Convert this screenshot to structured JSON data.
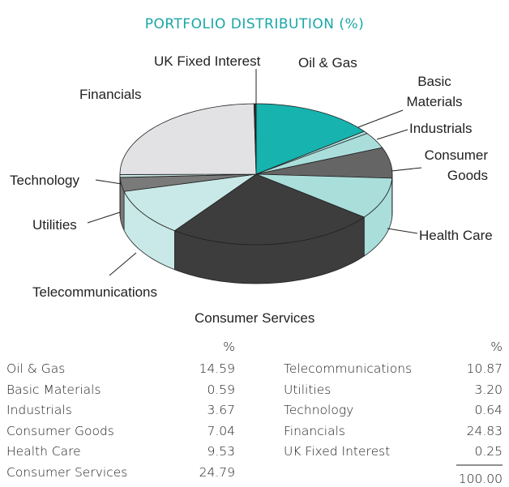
{
  "chart_data": {
    "type": "pie",
    "title": "PORTFOLIO DISTRIBUTION (%)",
    "categories": [
      "Oil & Gas",
      "Basic Materials",
      "Industrials",
      "Consumer Goods",
      "Health Care",
      "Consumer Services",
      "Telecommunications",
      "Utilities",
      "Technology",
      "Financials",
      "UK Fixed Interest"
    ],
    "values": [
      14.59,
      0.59,
      3.67,
      7.04,
      9.53,
      24.79,
      10.87,
      3.2,
      0.64,
      24.83,
      0.25
    ],
    "value_labels": [
      "14.59",
      "0.59",
      "3.67",
      "7.04",
      "9.53",
      "24.79",
      "10.87",
      "3.20",
      "0.64",
      "24.83",
      "0.25"
    ],
    "colors": [
      "#17b3ae",
      "#a9dedb",
      "#a9dedb",
      "#656565",
      "#a9dedb",
      "#3d3d3d",
      "#c9e9e8",
      "#7a7a7a",
      "#c9e9e8",
      "#e2e2e4",
      "#2c2c2c"
    ],
    "unit_header": "%",
    "total_label": "100.00"
  }
}
